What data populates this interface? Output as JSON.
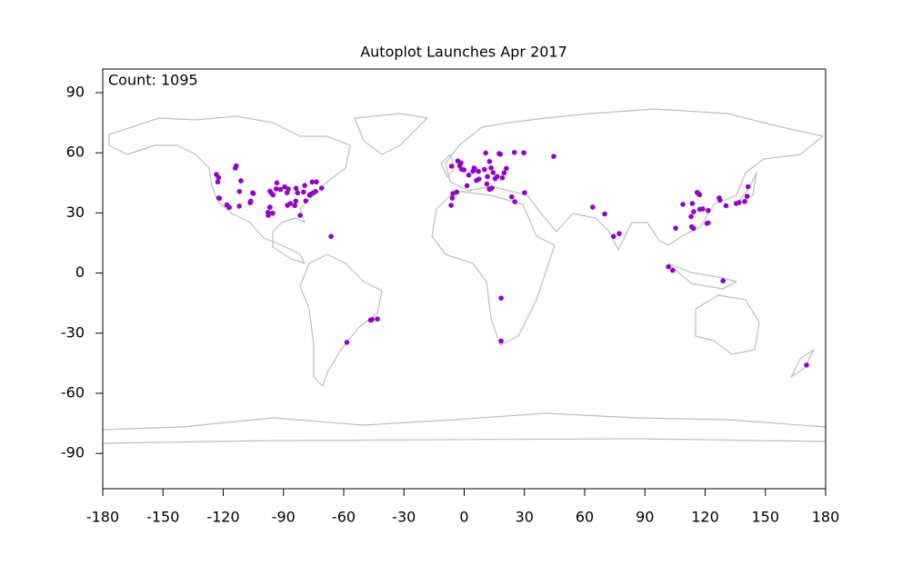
{
  "chart_data": {
    "type": "scatter",
    "title": "Autoplot Launches Apr 2017",
    "annotation": "Count: 1095",
    "xlim": [
      -180,
      180
    ],
    "ylim": [
      -107.6,
      101.8
    ],
    "xticks": [
      -180,
      -150,
      -120,
      -90,
      -60,
      -30,
      0,
      30,
      60,
      90,
      120,
      150,
      180
    ],
    "yticks": [
      -90,
      -60,
      -30,
      0,
      30,
      60,
      90
    ],
    "series": [
      {
        "color": "#9400cc",
        "x": [
          -122.3,
          -122.7,
          -122.2,
          -121.9,
          -118.2,
          -117.0,
          -105.3,
          -105.0,
          -111.9,
          -112.0,
          -106.6,
          -106.3,
          -91.5,
          -93.3,
          -89.4,
          -87.6,
          -88.2,
          -83.7,
          -83.0,
          -80.0,
          -77.0,
          -76.9,
          -76.6,
          -75.2,
          -74.0,
          -71.0,
          -78.9,
          -84.4,
          -95.4,
          -97.7,
          -96.8,
          -86.6,
          -114.0,
          -113.5,
          -111.2,
          -123.4,
          -73.6,
          -79.4,
          -75.7,
          -83.9,
          -81.7,
          -66.3,
          -96.7,
          -97.6,
          -88.0,
          -95.8,
          -95.2,
          -93.6,
          -96.7,
          -46.6,
          -43.2,
          -45.9,
          -58.4,
          -6.3,
          -1.3,
          -0.1,
          -2.2,
          -3.2,
          -1.6,
          2.3,
          1.4,
          -3.7,
          -5.9,
          4.9,
          5.2,
          4.4,
          7.1,
          13.4,
          11.6,
          10.1,
          14.4,
          16.4,
          15.4,
          12.5,
          12.7,
          11.3,
          7.4,
          6.1,
          18.0,
          17.4,
          12.6,
          10.7,
          25.0,
          29.7,
          44.6,
          21.0,
          19.9,
          19.0,
          30.1,
          23.7,
          13.8,
          25.2,
          -6.5,
          -5.6,
          18.4,
          18.4,
          64.0,
          70.0,
          74.4,
          77.2,
          116.4,
          116.0,
          117.2,
          117.3,
          118.8,
          121.5,
          114.3,
          105.3,
          113.3,
          114.0,
          108.9,
          113.6,
          113.0,
          127.0,
          127.4,
          139.7,
          140.9,
          136.9,
          135.5,
          130.4,
          141.4,
          121.5,
          120.9,
          103.8,
          101.7,
          128.9,
          114.2,
          170.5
        ],
        "y": [
          47.6,
          45.5,
          37.5,
          37.3,
          34.0,
          32.8,
          40.0,
          39.7,
          40.7,
          33.4,
          35.1,
          35.9,
          41.7,
          45.0,
          43.0,
          41.9,
          40.1,
          42.3,
          40.0,
          40.4,
          38.9,
          39.0,
          39.3,
          40.0,
          40.7,
          42.4,
          36.0,
          33.7,
          29.8,
          30.3,
          32.8,
          34.7,
          52.4,
          53.5,
          46.0,
          49.2,
          45.5,
          43.7,
          45.4,
          35.9,
          28.8,
          18.3,
          32.9,
          28.8,
          33.8,
          39.7,
          39.0,
          42.0,
          40.8,
          -23.5,
          -22.9,
          -23.2,
          -34.6,
          53.3,
          51.8,
          51.5,
          53.5,
          55.9,
          55.0,
          48.9,
          43.6,
          40.4,
          37.4,
          52.4,
          52.1,
          50.8,
          50.7,
          52.5,
          48.1,
          51.7,
          50.1,
          48.2,
          47.1,
          41.9,
          41.8,
          44.5,
          46.9,
          46.2,
          59.3,
          59.6,
          55.7,
          59.9,
          60.2,
          60.0,
          58.2,
          52.2,
          50.0,
          47.5,
          40.1,
          38.0,
          42.4,
          35.6,
          33.8,
          39.7,
          -33.9,
          -12.5,
          32.9,
          29.5,
          18.3,
          19.7,
          39.9,
          40.2,
          39.1,
          31.8,
          32.0,
          31.2,
          30.6,
          22.4,
          23.1,
          22.5,
          34.3,
          34.7,
          28.2,
          37.5,
          36.4,
          35.7,
          38.3,
          35.2,
          34.7,
          33.6,
          43.1,
          25.0,
          24.8,
          1.35,
          3.1,
          -3.9,
          22.3,
          -45.9
        ]
      }
    ]
  }
}
